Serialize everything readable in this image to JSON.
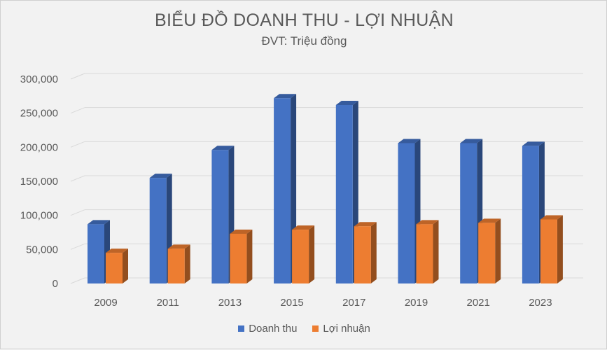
{
  "chart_data": {
    "type": "bar",
    "title": "BIỂU ĐỒ DOANH THU - LỢI NHUẬN",
    "subtitle": "ĐVT: Triệu đồng",
    "categories": [
      "2009",
      "2011",
      "2013",
      "2015",
      "2017",
      "2019",
      "2021",
      "2023"
    ],
    "series": [
      {
        "name": "Doanh thu",
        "color": "#4472c4",
        "values": [
          87000,
          155000,
          196000,
          272000,
          262000,
          206000,
          206000,
          202000
        ]
      },
      {
        "name": "Lợi nhuận",
        "color": "#ed7d31",
        "values": [
          45000,
          51000,
          73000,
          79000,
          84000,
          87000,
          89000,
          94000
        ]
      }
    ],
    "ylim": [
      0,
      300000
    ],
    "yticks": [
      "0",
      "50,000",
      "100,000",
      "150,000",
      "200,000",
      "250,000",
      "300,000"
    ],
    "grid": true,
    "legend_position": "bottom",
    "style": "3d-column"
  }
}
